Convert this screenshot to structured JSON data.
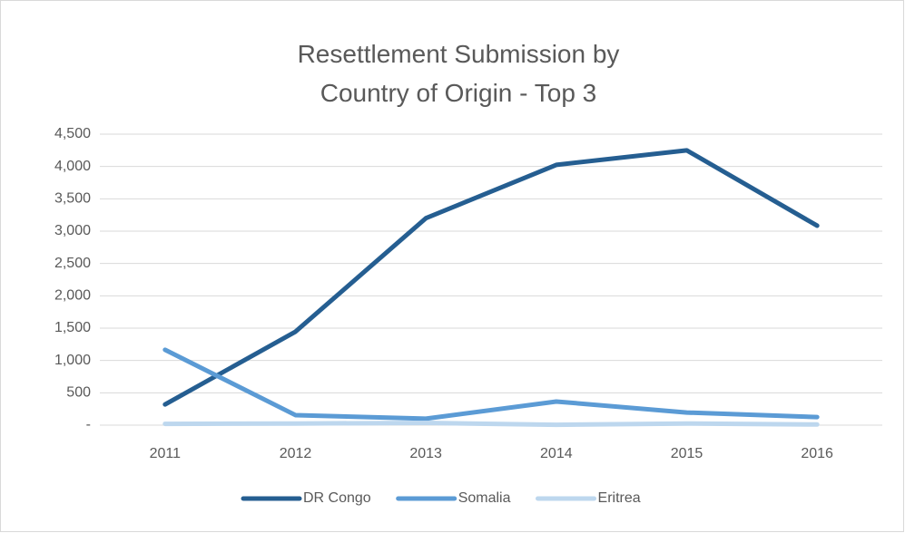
{
  "chart_data": {
    "type": "line",
    "title": "Resettlement Submission by Country of Origin - Top 3",
    "categories": [
      "2011",
      "2012",
      "2013",
      "2014",
      "2015",
      "2016"
    ],
    "series": [
      {
        "name": "DR Congo",
        "color": "#255e91",
        "values": [
          320,
          1445,
          3200,
          4025,
          4250,
          3085
        ]
      },
      {
        "name": "Somalia",
        "color": "#5b9bd5",
        "values": [
          1165,
          155,
          100,
          365,
          195,
          125
        ]
      },
      {
        "name": "Eritrea",
        "color": "#bdd7ee",
        "values": [
          20,
          25,
          35,
          5,
          25,
          10
        ]
      }
    ],
    "ylim": [
      0,
      4500
    ],
    "yticks": [
      {
        "value": 0,
        "label": "-"
      },
      500,
      {
        "value": 1000,
        "label": "1,000"
      },
      {
        "value": 1500,
        "label": "1,500"
      },
      {
        "value": 2000,
        "label": "2,000"
      },
      {
        "value": 2500,
        "label": "2,500"
      },
      {
        "value": 3000,
        "label": "3,000"
      },
      {
        "value": 3500,
        "label": "3,500"
      },
      {
        "value": 4000,
        "label": "4,000"
      },
      {
        "value": 4500,
        "label": "4,500"
      }
    ],
    "grid": true,
    "legend": "bottom"
  }
}
